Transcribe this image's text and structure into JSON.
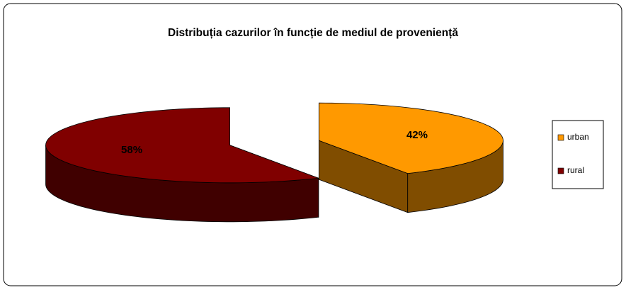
{
  "chart_data": {
    "type": "pie",
    "title": "Distribuția cazurilor în funcție de mediul de proveniență",
    "categories": [
      "urban",
      "rural"
    ],
    "values": [
      42,
      58
    ],
    "value_labels": [
      "42%",
      "58%"
    ],
    "colors": [
      "#FF9900",
      "#800000"
    ],
    "legend": "right"
  }
}
